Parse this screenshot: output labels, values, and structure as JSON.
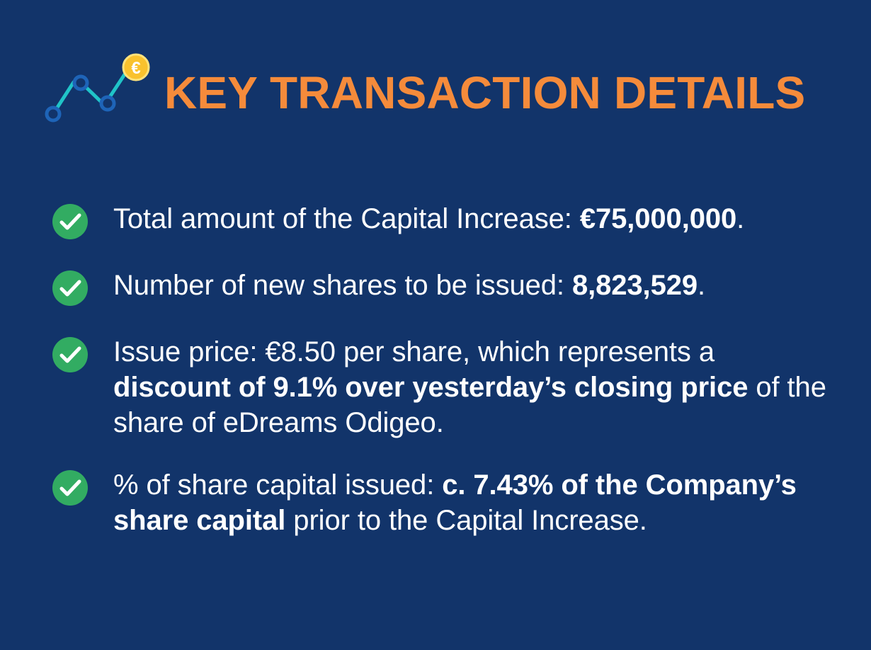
{
  "header": {
    "title": "KEY TRANSACTION DETAILS",
    "logo_icon": "euro-trend-chart-icon",
    "coin_symbol": "€",
    "accent_color": "#f58b3b",
    "background_color": "#12346a"
  },
  "items": [
    {
      "icon": "checkmark-icon",
      "segments": [
        {
          "text": "Total amount of the Capital Increase: ",
          "bold": false
        },
        {
          "text": "€75,000,000",
          "bold": true
        },
        {
          "text": ".",
          "bold": false
        }
      ]
    },
    {
      "icon": "checkmark-icon",
      "segments": [
        {
          "text": "Number of new shares to be issued: ",
          "bold": false
        },
        {
          "text": "8,823,529",
          "bold": true
        },
        {
          "text": ".",
          "bold": false
        }
      ]
    },
    {
      "icon": "checkmark-icon",
      "segments": [
        {
          "text": "Issue price: €8.50 per share, which represents a ",
          "bold": false
        },
        {
          "text": "discount of 9.1% over yesterday’s closing price",
          "bold": true
        },
        {
          "text": " of the share of eDreams Odigeo.",
          "bold": false
        }
      ]
    },
    {
      "icon": "checkmark-icon",
      "segments": [
        {
          "text": "% of share capital issued: ",
          "bold": false
        },
        {
          "text": "c. 7.43% of the Company’s share capital",
          "bold": true
        },
        {
          "text": " prior to the Capital Increase.",
          "bold": false
        }
      ]
    }
  ]
}
